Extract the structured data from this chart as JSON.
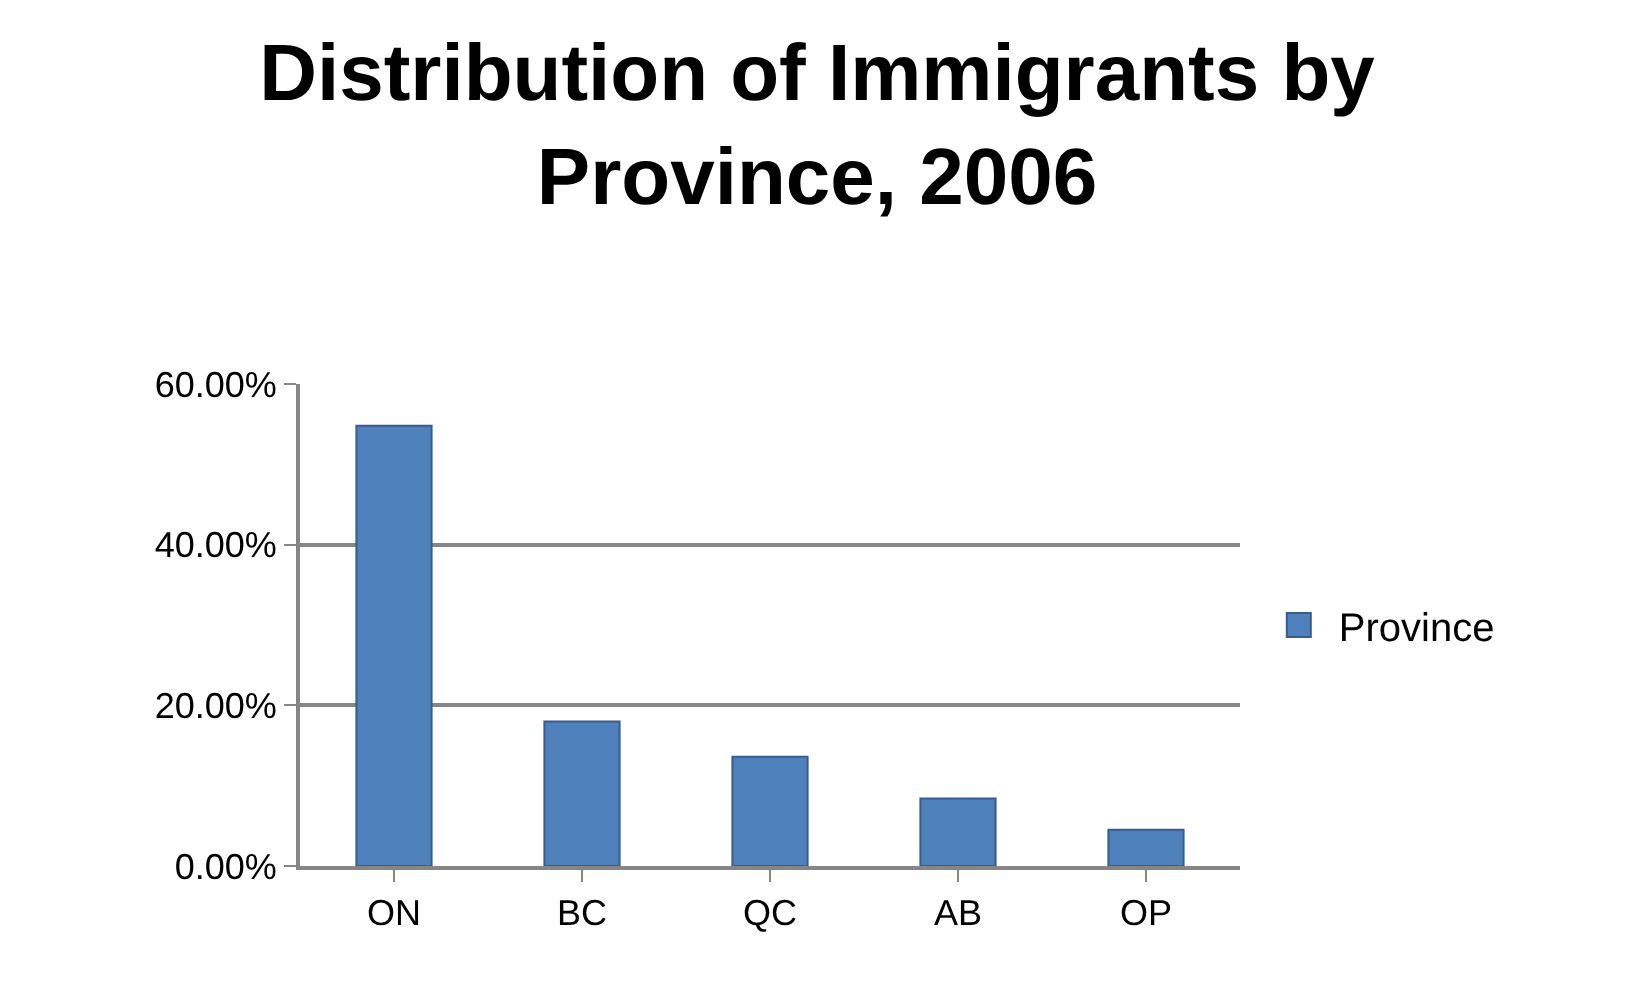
{
  "chart_data": {
    "type": "bar",
    "title": "Distribution of Immigrants by Province, 2006",
    "categories": [
      "ON",
      "BC",
      "QC",
      "AB",
      "OP"
    ],
    "series": [
      {
        "name": "Province",
        "color": "#4f81bd",
        "values": [
          54.8,
          18.0,
          13.6,
          8.4,
          4.5
        ]
      }
    ],
    "ylim": [
      0,
      60
    ],
    "yticks": [
      {
        "value": 0,
        "label": "0.00%"
      },
      {
        "value": 20,
        "label": "20.00%"
      },
      {
        "value": 40,
        "label": "40.00%"
      },
      {
        "value": 60,
        "label": "60.00%"
      }
    ],
    "grid": "y",
    "legend": "right"
  }
}
